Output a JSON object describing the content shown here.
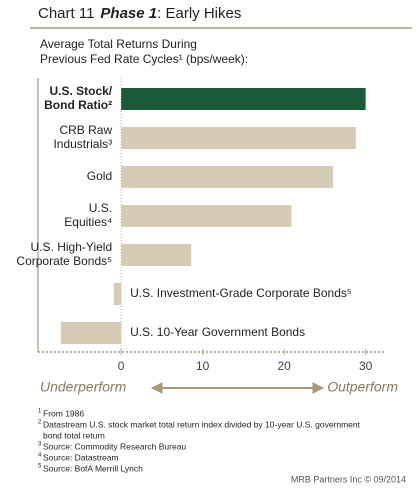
{
  "chart_data": {
    "type": "bar",
    "orientation": "horizontal",
    "title_prefix": "Chart 11",
    "title_emphasis": "Phase 1",
    "title_rest": ": Early Hikes",
    "subtitle": [
      "Average Total Returns During",
      "Previous Fed Rate Cycles¹ (bps/week):"
    ],
    "categories": [
      "U.S. Stock/\nBond Ratio²",
      "CRB Raw\nIndustrials³",
      "Gold",
      "U.S.\nEquities⁴",
      "U.S. High-Yield\nCorporate Bonds⁵",
      "U.S. Investment-Grade Corporate Bonds⁵",
      "U.S. 10-Year Government Bonds"
    ],
    "values": [
      30,
      28.8,
      26,
      20.9,
      8.6,
      -0.9,
      -7.4
    ],
    "colors": [
      "#1b5a38",
      "#d5cbb7",
      "#d5cbb7",
      "#d5cbb7",
      "#d5cbb7",
      "#d5cbb7",
      "#d5cbb7"
    ],
    "xlim": [
      -10.2,
      32.5
    ],
    "xticks": [
      0,
      10,
      20,
      30
    ],
    "left_label": "Underperform",
    "right_label": "Outperform",
    "footnotes": [
      {
        "mark": "1",
        "text": "From 1986"
      },
      {
        "mark": "2",
        "text": "Datastream U.S. stock market total return index divided by 10-year U.S. government"
      },
      {
        "mark": "",
        "text": "bond total return"
      },
      {
        "mark": "3",
        "text": "Source: Commodity Research Bureau"
      },
      {
        "mark": "4",
        "text": "Source: Datastream"
      },
      {
        "mark": "5",
        "text": "Source: BofA Merrill Lynch"
      }
    ],
    "source": "MRB Partners Inc © 09/2014"
  }
}
